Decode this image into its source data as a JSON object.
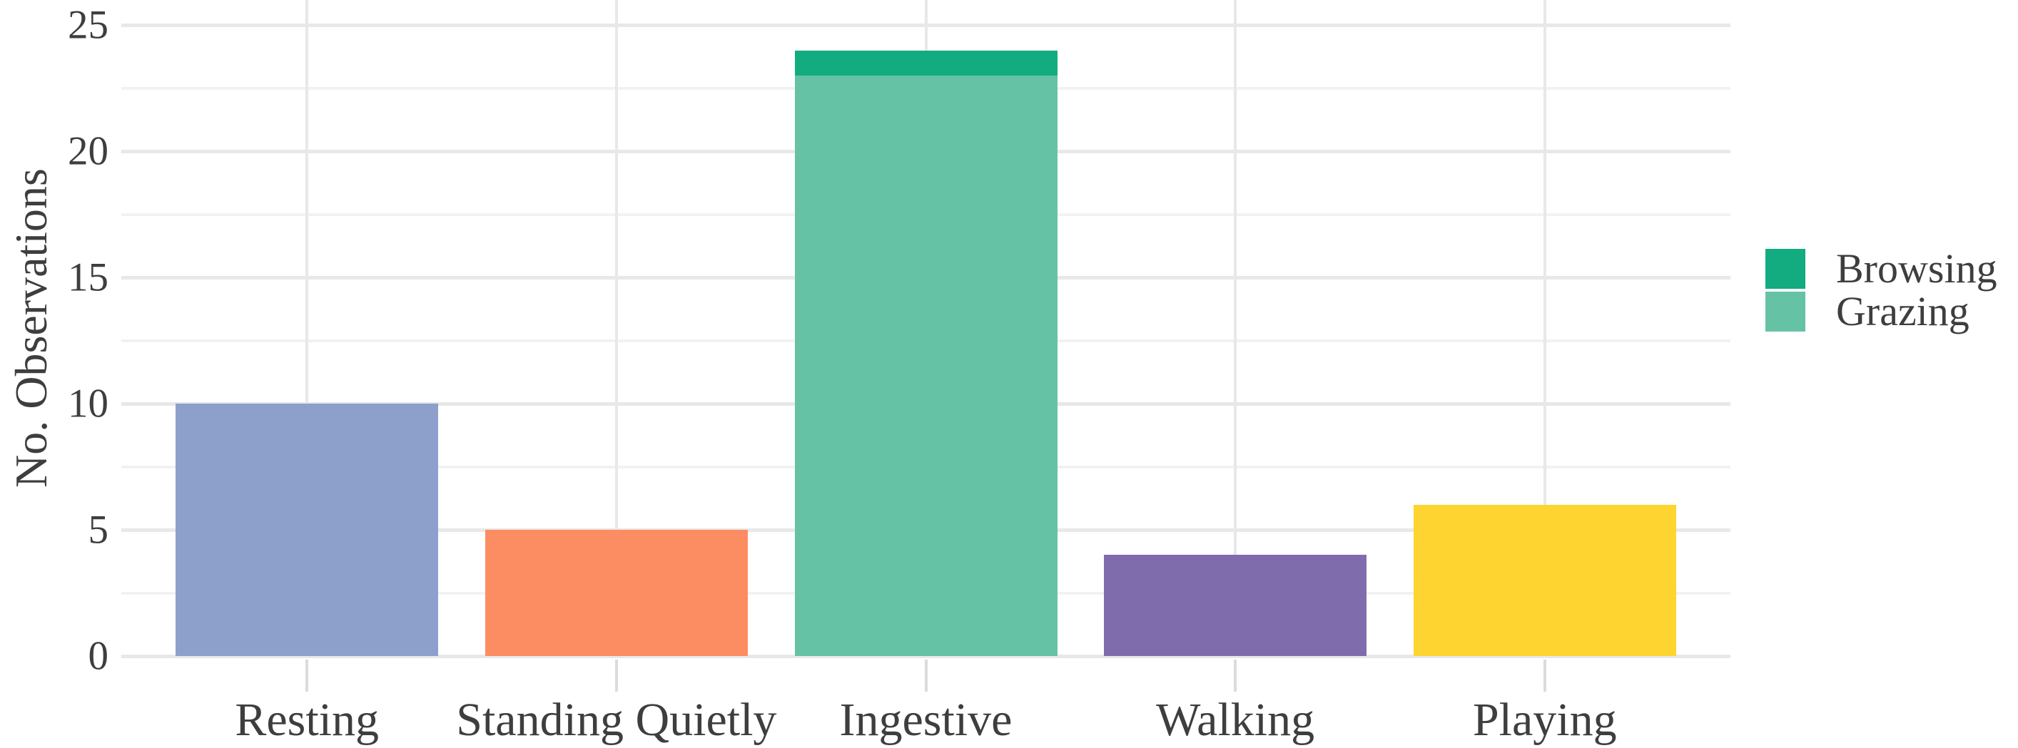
{
  "style": {
    "background": "#FFFFFF",
    "text_color": "#3E3E3E",
    "grid_major_color": "#E8E8E8",
    "grid_minor_color": "#F2F2F2",
    "axis_tick_color": "#DCDCDC"
  },
  "chart_data": {
    "type": "bar",
    "stacked": true,
    "title": "",
    "xlabel": "",
    "ylabel": "No. Observations",
    "ylim": [
      0,
      26
    ],
    "yticks_major": [
      0,
      5,
      10,
      15,
      20,
      25
    ],
    "yticks_minor": [
      2.5,
      7.5,
      12.5,
      17.5,
      22.5
    ],
    "grid": "on",
    "legend_position": "right",
    "categories": [
      "Resting",
      "Standing Quietly",
      "Ingestive",
      "Walking",
      "Playing"
    ],
    "bars": [
      {
        "category": "Resting",
        "segments": [
          {
            "label": "Resting",
            "value": 10,
            "color": "#8DA0CB"
          }
        ]
      },
      {
        "category": "Standing Quietly",
        "segments": [
          {
            "label": "Standing Quietly",
            "value": 5,
            "color": "#FC8D62"
          }
        ]
      },
      {
        "category": "Ingestive",
        "segments": [
          {
            "label": "Grazing",
            "value": 23,
            "color": "#66C2A5"
          },
          {
            "label": "Browsing",
            "value": 1,
            "color": "#12AC80"
          }
        ]
      },
      {
        "category": "Walking",
        "segments": [
          {
            "label": "Walking",
            "value": 4,
            "color": "#7F6CAC"
          }
        ]
      },
      {
        "category": "Playing",
        "segments": [
          {
            "label": "Playing",
            "value": 6,
            "color": "#FED430"
          }
        ]
      }
    ],
    "legend": [
      {
        "label": "Browsing",
        "color": "#12AC80"
      },
      {
        "label": "Grazing",
        "color": "#66C2A5"
      }
    ]
  }
}
